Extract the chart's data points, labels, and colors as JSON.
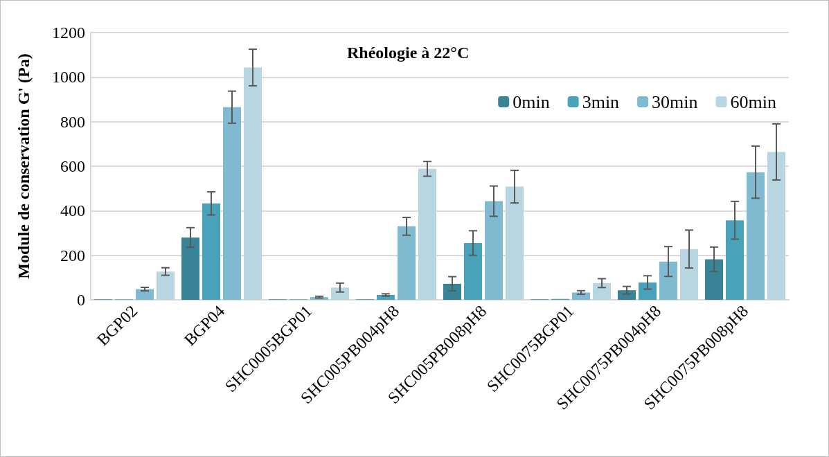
{
  "chart_data": {
    "type": "bar",
    "title": "Rhéologie à 22°C",
    "ylabel": "Module de conservation G' (Pa)",
    "categories": [
      "BGP02",
      "BGP04",
      "SHC0005BGP01",
      "SHC005PB004pH8",
      "SHC005PB008pH8",
      "SHC0075BGP01",
      "SHC0075PB004pH8",
      "SHC0075PB008pH8"
    ],
    "series": [
      {
        "name": "0min",
        "color": "#3a8497",
        "values": [
          2,
          280,
          2,
          2,
          72,
          2,
          43,
          182
        ],
        "errors": [
          null,
          44,
          null,
          null,
          32,
          null,
          17,
          55
        ]
      },
      {
        "name": "3min",
        "color": "#48a2b9",
        "values": [
          2,
          433,
          2,
          22,
          255,
          4,
          78,
          357
        ],
        "errors": [
          null,
          52,
          null,
          5,
          55,
          null,
          30,
          85
        ]
      },
      {
        "name": "30min",
        "color": "#7fbad0",
        "values": [
          48,
          865,
          12,
          330,
          443,
          33,
          172,
          573
        ],
        "errors": [
          8,
          72,
          4,
          40,
          68,
          8,
          67,
          117
        ]
      },
      {
        "name": "60min",
        "color": "#b7d6e1",
        "values": [
          127,
          1043,
          55,
          588,
          508,
          75,
          228,
          664
        ],
        "errors": [
          17,
          82,
          20,
          33,
          73,
          20,
          85,
          126
        ]
      }
    ],
    "ylim": [
      0,
      1200
    ],
    "yticks": [
      0,
      200,
      400,
      600,
      800,
      1000,
      1200
    ],
    "grid": "y",
    "legend": "top right"
  }
}
